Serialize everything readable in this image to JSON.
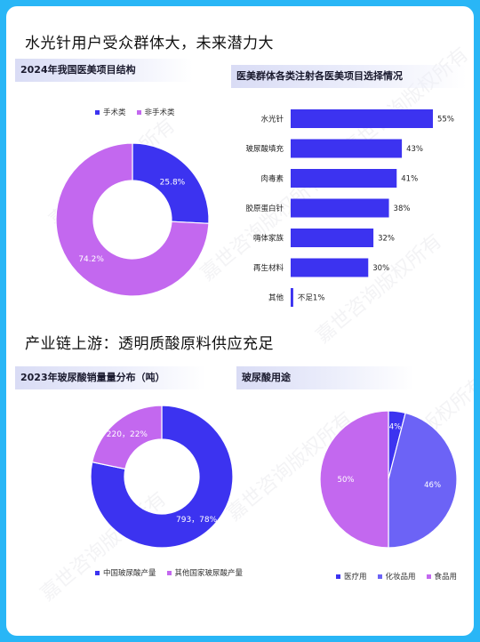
{
  "colors": {
    "blue": "#3c33f0",
    "violet": "#c368ef",
    "mid_blue": "#6c63f6",
    "frame": "#29b6f6"
  },
  "sections": {
    "top_heading": "水光针用户受众群体大，未来潜力大",
    "bottom_heading": "产业链上游：透明质酸原料供应充足"
  },
  "watermark": "嘉世咨询版权所有",
  "chart_data": [
    {
      "type": "pie",
      "title": "2024年我国医美项目结构",
      "labels": [
        "手术类",
        "非手术类"
      ],
      "values": [
        25.8,
        74.2
      ],
      "data_labels": [
        "25.8%",
        "74.2%"
      ],
      "colors": [
        "#3c33f0",
        "#c368ef"
      ],
      "legend": "top"
    },
    {
      "type": "bar",
      "orientation": "horizontal",
      "title": "医美群体各类注射各医美项目选择情况",
      "categories": [
        "水光针",
        "玻尿酸填充",
        "肉毒素",
        "胶原蛋白针",
        "嗨体家族",
        "再生材料",
        "其他"
      ],
      "values": [
        55,
        43,
        41,
        38,
        32,
        30,
        1
      ],
      "data_labels": [
        "55%",
        "43%",
        "41%",
        "38%",
        "32%",
        "30%",
        "不足1%"
      ],
      "color": "#3c33f0"
    },
    {
      "type": "pie",
      "title": "2023年玻尿酸销量量分布（吨）",
      "labels": [
        "中国玻尿酸产量",
        "其他国家玻尿酸产量"
      ],
      "values": [
        793,
        220
      ],
      "data_labels": [
        "793，78%",
        "220，22%"
      ],
      "colors": [
        "#3c33f0",
        "#c368ef"
      ],
      "legend": "bottom"
    },
    {
      "type": "pie",
      "title": "玻尿酸用途",
      "labels": [
        "医疗用",
        "化妆品用",
        "食品用"
      ],
      "values": [
        4,
        46,
        50
      ],
      "data_labels": [
        "4%",
        "46%",
        "50%"
      ],
      "colors": [
        "#3c33f0",
        "#6c63f6",
        "#c368ef"
      ],
      "legend": "bottom"
    }
  ]
}
